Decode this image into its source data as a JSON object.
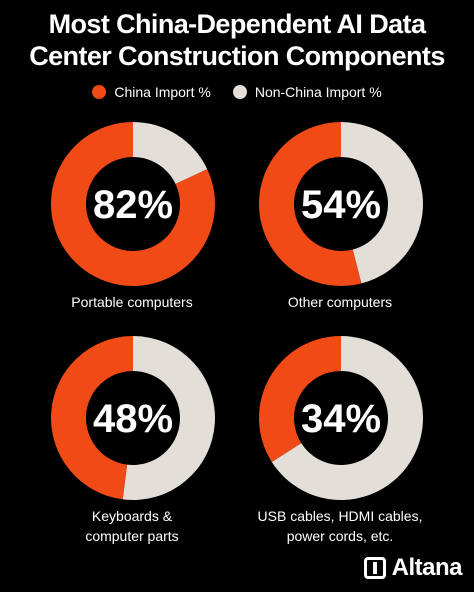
{
  "title": {
    "line1": "Most China-Dependent AI Data",
    "line2": "Center Construction Components"
  },
  "legend": {
    "china": "China Import %",
    "non_china": "Non-China Import %"
  },
  "colors": {
    "china": "#F04A17",
    "non_china": "#E3DFD8",
    "background": "#000000"
  },
  "chart_data": [
    {
      "type": "pie",
      "name": "Portable computers",
      "values": [
        82,
        18
      ],
      "categories": [
        "China Import %",
        "Non-China Import %"
      ],
      "center_label": "82%",
      "caption": [
        "Portable computers"
      ]
    },
    {
      "type": "pie",
      "name": "Other computers",
      "values": [
        54,
        46
      ],
      "categories": [
        "China Import %",
        "Non-China Import %"
      ],
      "center_label": "54%",
      "caption": [
        "Other computers"
      ]
    },
    {
      "type": "pie",
      "name": "Keyboards & computer parts",
      "values": [
        48,
        52
      ],
      "categories": [
        "China Import %",
        "Non-China Import %"
      ],
      "center_label": "48%",
      "caption": [
        "Keyboards &",
        "computer parts"
      ]
    },
    {
      "type": "pie",
      "name": "USB cables, HDMI cables, power cords, etc.",
      "values": [
        34,
        66
      ],
      "categories": [
        "China Import %",
        "Non-China Import %"
      ],
      "center_label": "34%",
      "caption": [
        "USB cables, HDMI cables,",
        "power cords, etc."
      ]
    }
  ],
  "brand": {
    "logo_text": "Altana",
    "logo_icon": "altana-logo-icon"
  }
}
